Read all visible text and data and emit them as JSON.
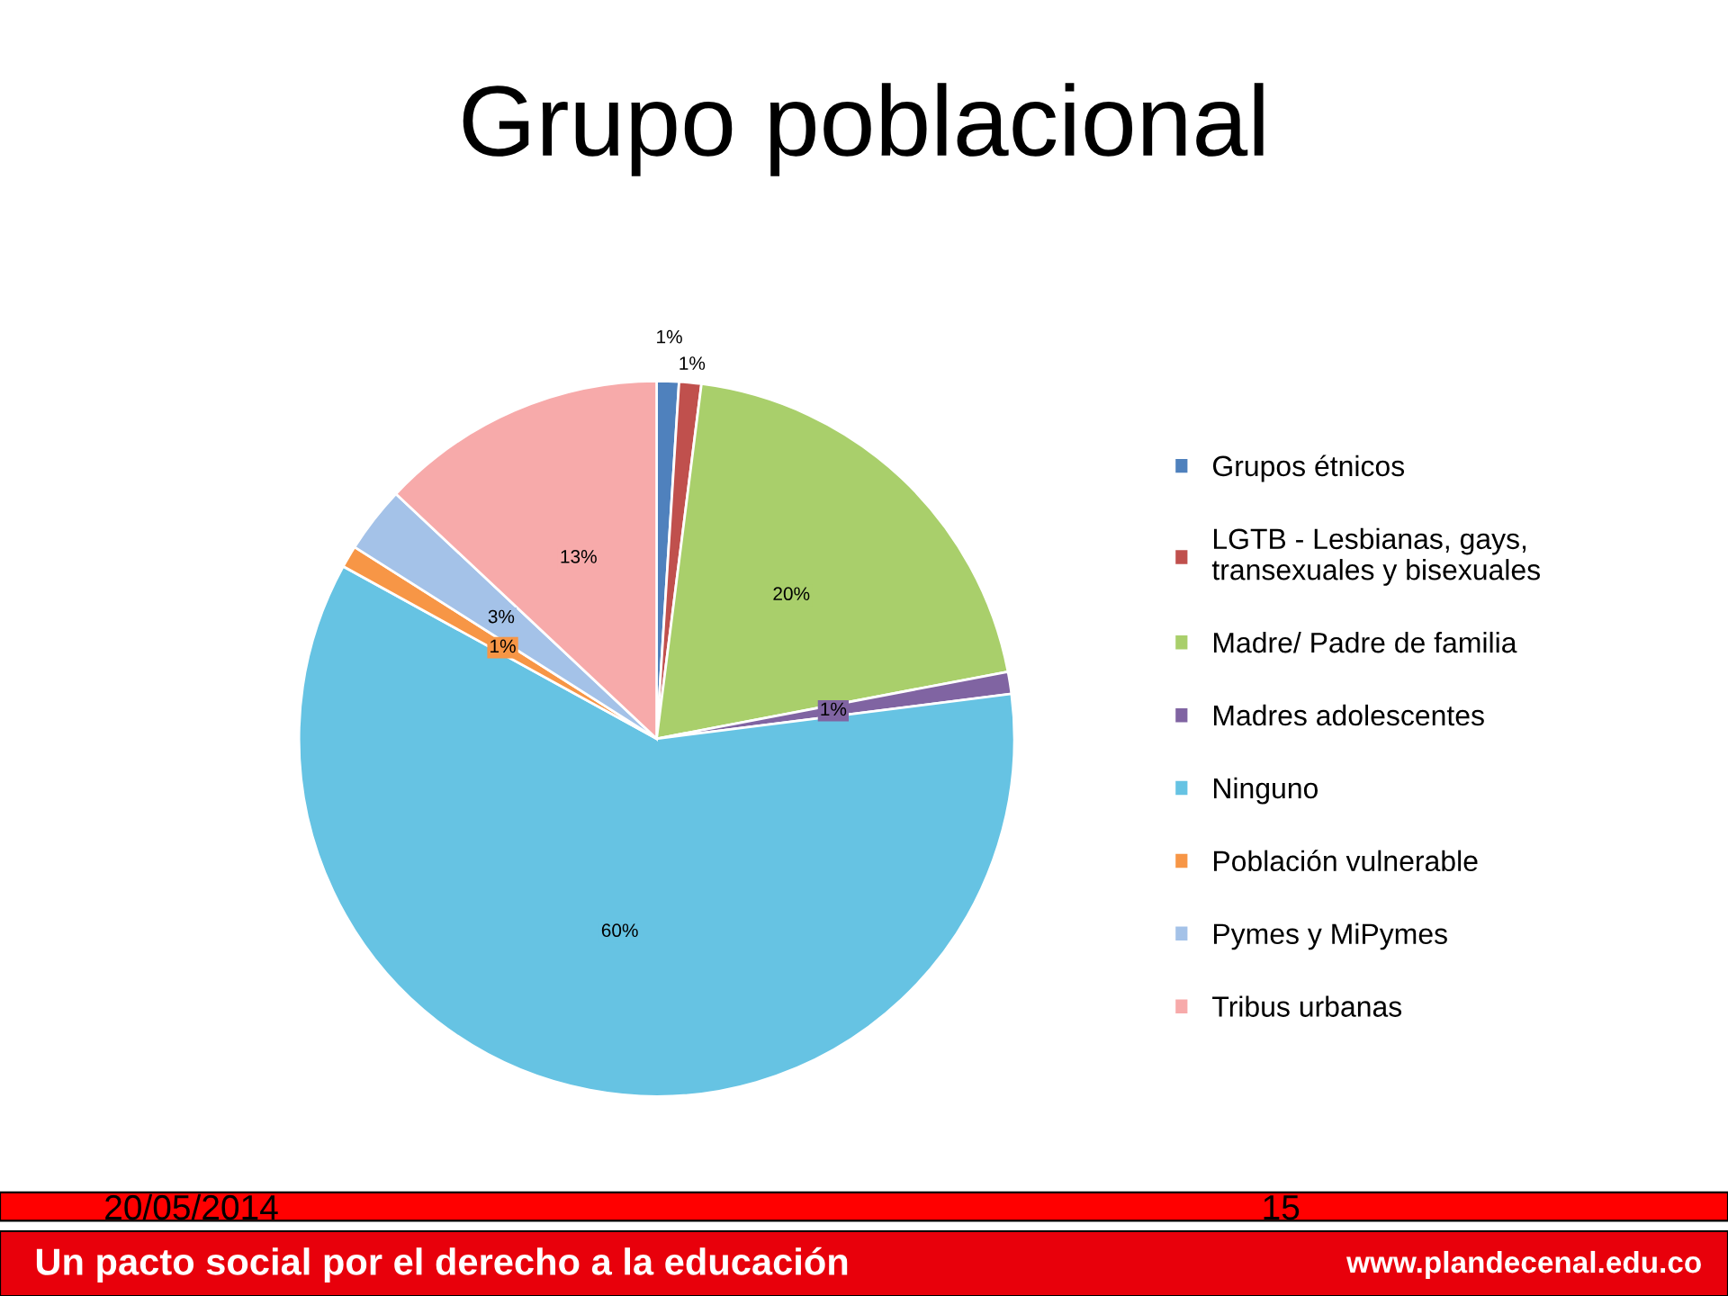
{
  "chart_data": {
    "type": "pie",
    "title": "Grupo poblacional",
    "categories": [
      "Grupos étnicos",
      "LGTB - Lesbianas, gays,\ntransexuales y bisexuales",
      "Madre/ Padre de familia",
      "Madres adolescentes",
      "Ninguno",
      "Población vulnerable",
      "Pymes y MiPymes",
      "Tribus urbanas"
    ],
    "values": [
      1,
      1,
      20,
      1,
      60,
      1,
      3,
      13
    ],
    "value_labels": [
      "1%",
      "1%",
      "20%",
      "1%",
      "60%",
      "1%",
      "3%",
      "13%"
    ],
    "colors": [
      "#4f81bd",
      "#c0504d",
      "#a9cf6b",
      "#8064a2",
      "#66c3e3",
      "#f79646",
      "#a4c2e8",
      "#f7aaaa"
    ],
    "legend": "right",
    "annotations": [
      "20/05/2014",
      "15",
      "Un pacto social por el derecho a la educación",
      "www.plandecenal.edu.co"
    ]
  }
}
